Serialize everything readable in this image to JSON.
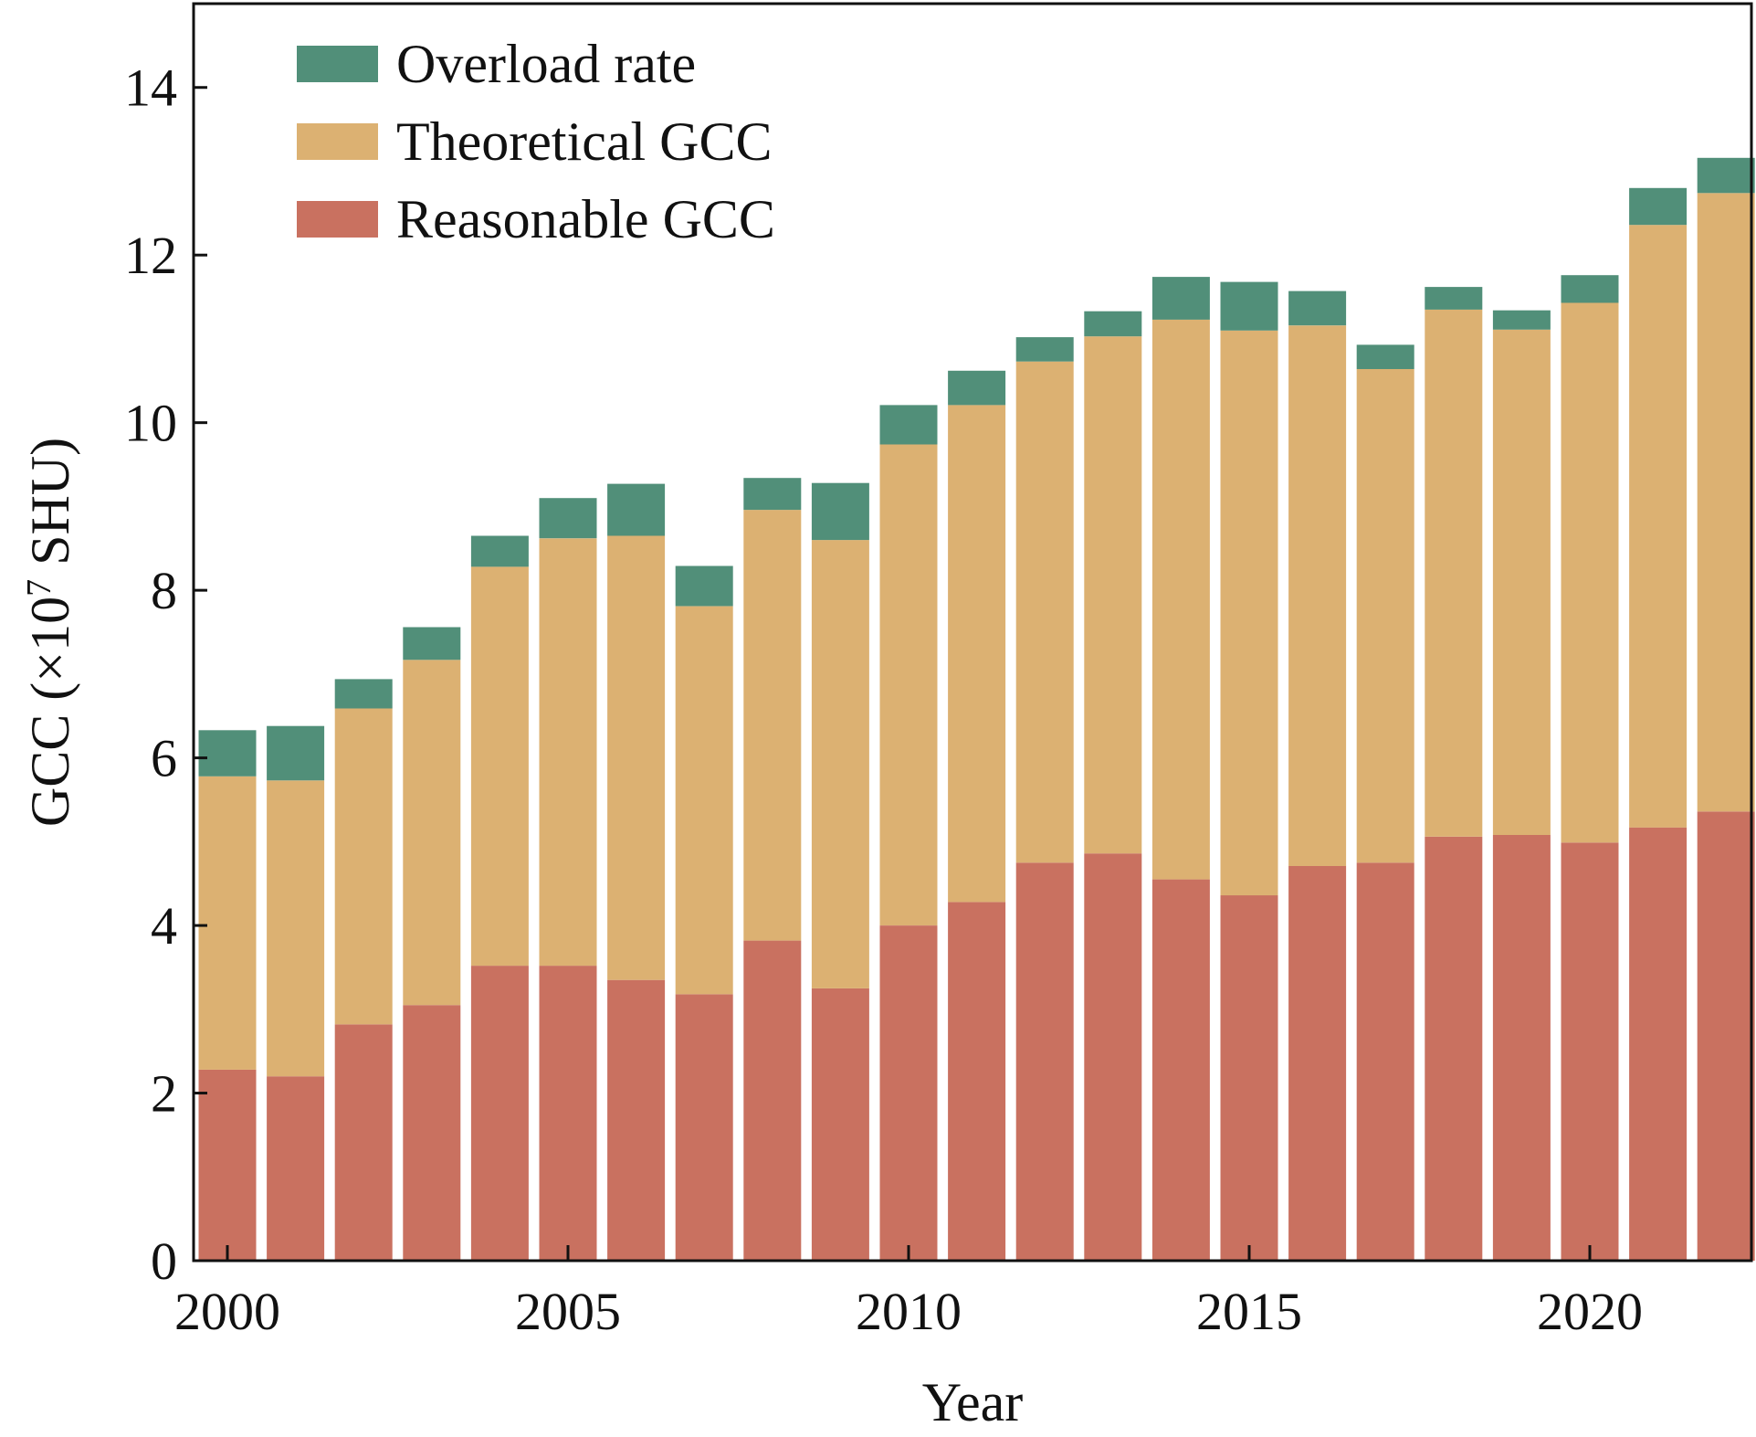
{
  "chart_data": {
    "type": "bar",
    "stacked": true,
    "xlabel": "Year",
    "ylabel": "GCC (×10",
    "ylabel_superscript": "7",
    "ylabel_suffix": " SHU)",
    "ylim": [
      0,
      15
    ],
    "yticks": [
      0,
      2,
      4,
      6,
      8,
      10,
      12,
      14
    ],
    "xticks": [
      2000,
      2005,
      2010,
      2015,
      2020
    ],
    "grid": false,
    "legend_position": "top-left",
    "categories": [
      2000,
      2001,
      2002,
      2003,
      2004,
      2005,
      2006,
      2007,
      2008,
      2009,
      2010,
      2011,
      2012,
      2013,
      2014,
      2015,
      2016,
      2017,
      2018,
      2019,
      2020,
      2021,
      2022
    ],
    "series": [
      {
        "name": "Reasonable GCC",
        "color": "#c97160",
        "values": [
          2.28,
          2.2,
          2.82,
          3.05,
          3.52,
          3.52,
          3.35,
          3.18,
          3.82,
          3.25,
          4.0,
          4.28,
          4.75,
          4.86,
          4.55,
          4.36,
          4.71,
          4.75,
          5.06,
          5.08,
          4.99,
          5.17,
          5.36
        ]
      },
      {
        "name": "Theoretical GCC",
        "color": "#dcb172",
        "values": [
          3.5,
          3.53,
          3.77,
          4.12,
          4.76,
          5.1,
          5.3,
          4.63,
          5.14,
          5.35,
          5.74,
          5.93,
          5.98,
          6.17,
          6.68,
          6.74,
          6.45,
          5.89,
          6.29,
          6.03,
          6.44,
          7.19,
          7.38
        ]
      },
      {
        "name": "Overload rate",
        "color": "#518f79",
        "values": [
          0.55,
          0.65,
          0.35,
          0.39,
          0.37,
          0.48,
          0.62,
          0.48,
          0.38,
          0.68,
          0.47,
          0.41,
          0.29,
          0.3,
          0.51,
          0.58,
          0.41,
          0.29,
          0.27,
          0.23,
          0.33,
          0.44,
          0.42
        ]
      }
    ],
    "legend_order": [
      "Overload rate",
      "Theoretical GCC",
      "Reasonable GCC"
    ]
  }
}
